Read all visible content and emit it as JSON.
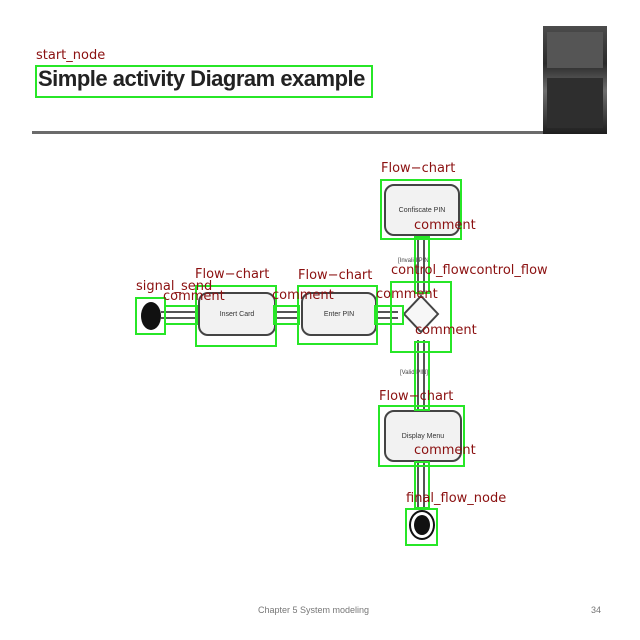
{
  "slide": {
    "title": "Simple activity Diagram example",
    "footer_left": "Chapter 5 System modeling",
    "footer_right": "34"
  },
  "diagram": {
    "nodes": {
      "confiscate": "Confiscate PIN",
      "insert_card": "Insert Card",
      "enter_pin": "Enter PIN",
      "display_menu": "Display Menu"
    },
    "guards": {
      "invalid": "[Invalid PIN]",
      "valid": "[Valid PIN]"
    }
  },
  "annotations": {
    "start_node": "start_node",
    "flow_chart_1": "Flow−chart",
    "flow_chart_2": "Flow−chart",
    "flow_chart_3": "Flow−chart",
    "flow_chart_4": "Flow−chart",
    "comment_1": "comment",
    "comment_2": "comment",
    "comment_3": "comment",
    "comment_4": "comment",
    "comment_5": "comment",
    "comment_6": "comment",
    "control_flow": "control_flowcontrol_flow",
    "signal_send": "signal_send",
    "final_flow_node": "final_flow_node"
  },
  "colors": {
    "box": "#27e627",
    "label": "#8b1010"
  }
}
